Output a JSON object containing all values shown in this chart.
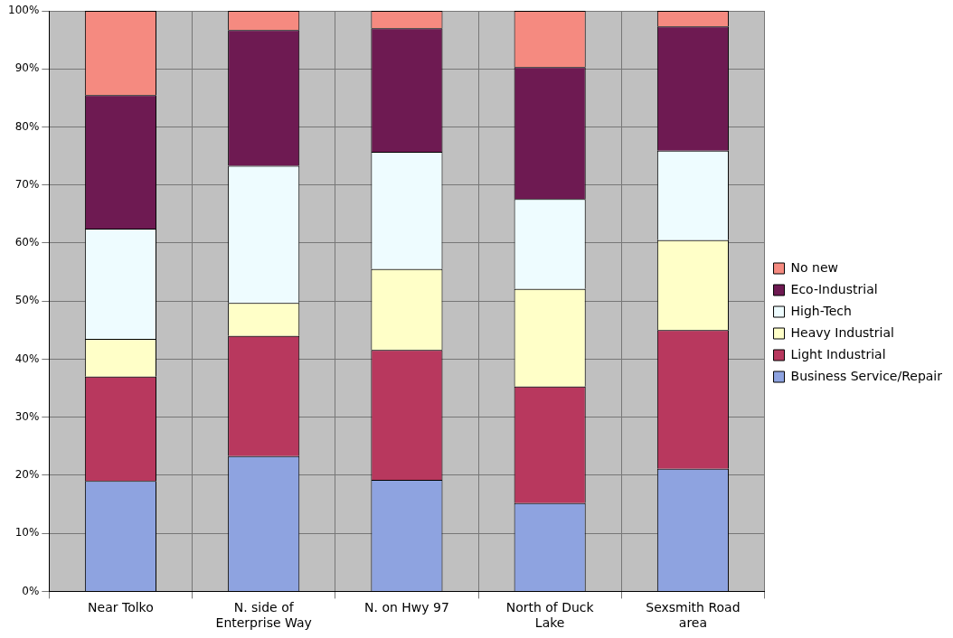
{
  "chart_data": {
    "type": "bar",
    "stacked": true,
    "categories": [
      "Near Tolko",
      "N. side of\nEnterprise Way",
      "N. on Hwy 97",
      "North of Duck\nLake",
      "Sexsmith Road\narea"
    ],
    "series": [
      {
        "name": "Business Service/Repair",
        "color": "#8ea3e0",
        "values": [
          19,
          23.3,
          19.2,
          15.2,
          21.1
        ]
      },
      {
        "name": "Light Industrial",
        "color": "#b8385e",
        "values": [
          18,
          20.7,
          22.4,
          20.1,
          23.9
        ]
      },
      {
        "name": "Heavy Industrial",
        "color": "#ffffc8",
        "values": [
          6.5,
          5.7,
          13.9,
          16.8,
          15.5
        ]
      },
      {
        "name": "High-Tech",
        "color": "#eefcff",
        "values": [
          19,
          23.6,
          20.2,
          15.5,
          15.4
        ]
      },
      {
        "name": "Eco-Industrial",
        "color": "#6e1a52",
        "values": [
          23,
          23.4,
          21.3,
          22.7,
          21.4
        ]
      },
      {
        "name": "No new",
        "color": "#f58a80",
        "values": [
          14.5,
          3.3,
          3,
          9.7,
          2.7
        ]
      }
    ],
    "ylim": [
      0,
      100
    ],
    "yticks": [
      {
        "value": 0,
        "label": "0%"
      },
      {
        "value": 10,
        "label": "10%"
      },
      {
        "value": 20,
        "label": "20%"
      },
      {
        "value": 30,
        "label": "30%"
      },
      {
        "value": 40,
        "label": "40%"
      },
      {
        "value": 50,
        "label": "50%"
      },
      {
        "value": 60,
        "label": "60%"
      },
      {
        "value": 70,
        "label": "70%"
      },
      {
        "value": 80,
        "label": "80%"
      },
      {
        "value": 90,
        "label": "90%"
      },
      {
        "value": 100,
        "label": "100%"
      }
    ],
    "grid": true,
    "legend": "right"
  }
}
